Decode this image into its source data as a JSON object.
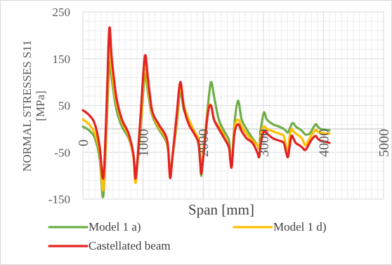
{
  "chart_data": {
    "type": "line",
    "title": "",
    "xlabel": "Span [mm]",
    "ylabel_lines": [
      "NORMAL STRESSES S11",
      "[MPa]"
    ],
    "xlim": [
      0,
      5000
    ],
    "ylim": [
      -150,
      250
    ],
    "xticks": [
      0,
      1000,
      2000,
      3000,
      4000,
      5000
    ],
    "xtick_labels": [
      "0",
      "1000",
      "2000",
      "3000",
      "4000",
      "5000"
    ],
    "yticks": [
      -150,
      -50,
      50,
      150,
      250
    ],
    "ytick_labels": [
      "-150",
      "-50",
      "50",
      "150",
      "250"
    ],
    "grid": true,
    "legend_position": "bottom",
    "series": [
      {
        "name": "Model 1 a)",
        "color": "#70AD47",
        "points": [
          [
            0,
            5
          ],
          [
            100,
            -3
          ],
          [
            200,
            -20
          ],
          [
            280,
            -65
          ],
          [
            330,
            -145
          ],
          [
            360,
            -100
          ],
          [
            400,
            20
          ],
          [
            440,
            140
          ],
          [
            480,
            105
          ],
          [
            560,
            40
          ],
          [
            650,
            5
          ],
          [
            760,
            -20
          ],
          [
            840,
            -55
          ],
          [
            870,
            -95
          ],
          [
            900,
            -80
          ],
          [
            960,
            0
          ],
          [
            1030,
            115
          ],
          [
            1080,
            80
          ],
          [
            1150,
            30
          ],
          [
            1260,
            0
          ],
          [
            1380,
            -25
          ],
          [
            1420,
            -50
          ],
          [
            1450,
            -95
          ],
          [
            1490,
            -60
          ],
          [
            1560,
            10
          ],
          [
            1620,
            80
          ],
          [
            1680,
            40
          ],
          [
            1760,
            20
          ],
          [
            1850,
            -5
          ],
          [
            1920,
            -25
          ],
          [
            1950,
            -60
          ],
          [
            1970,
            -100
          ],
          [
            2010,
            -40
          ],
          [
            2080,
            50
          ],
          [
            2130,
            100
          ],
          [
            2180,
            70
          ],
          [
            2260,
            20
          ],
          [
            2350,
            -5
          ],
          [
            2430,
            -25
          ],
          [
            2450,
            -60
          ],
          [
            2475,
            -80
          ],
          [
            2520,
            10
          ],
          [
            2580,
            60
          ],
          [
            2640,
            20
          ],
          [
            2720,
            0
          ],
          [
            2820,
            -20
          ],
          [
            2900,
            -35
          ],
          [
            2930,
            -40
          ],
          [
            2960,
            0
          ],
          [
            3010,
            35
          ],
          [
            3060,
            20
          ],
          [
            3160,
            10
          ],
          [
            3260,
            5
          ],
          [
            3340,
            0
          ],
          [
            3380,
            -5
          ],
          [
            3410,
            -8
          ],
          [
            3440,
            0
          ],
          [
            3470,
            10
          ],
          [
            3500,
            12
          ],
          [
            3540,
            5
          ],
          [
            3600,
            0
          ],
          [
            3650,
            -5
          ],
          [
            3700,
            -12
          ],
          [
            3770,
            -10
          ],
          [
            3820,
            0
          ],
          [
            3870,
            10
          ],
          [
            3900,
            6
          ],
          [
            3950,
            0
          ],
          [
            4050,
            -2
          ],
          [
            4100,
            -3
          ]
        ]
      },
      {
        "name": "Model 1 d)",
        "color": "#FFC000",
        "points": [
          [
            0,
            20
          ],
          [
            100,
            10
          ],
          [
            200,
            -10
          ],
          [
            280,
            -50
          ],
          [
            330,
            -130
          ],
          [
            360,
            -90
          ],
          [
            400,
            40
          ],
          [
            440,
            195
          ],
          [
            480,
            125
          ],
          [
            560,
            55
          ],
          [
            650,
            15
          ],
          [
            760,
            -15
          ],
          [
            840,
            -60
          ],
          [
            870,
            -115
          ],
          [
            900,
            -85
          ],
          [
            960,
            10
          ],
          [
            1030,
            140
          ],
          [
            1080,
            95
          ],
          [
            1150,
            35
          ],
          [
            1260,
            5
          ],
          [
            1380,
            -20
          ],
          [
            1420,
            -50
          ],
          [
            1450,
            -100
          ],
          [
            1490,
            -60
          ],
          [
            1560,
            20
          ],
          [
            1620,
            90
          ],
          [
            1680,
            50
          ],
          [
            1760,
            20
          ],
          [
            1850,
            -5
          ],
          [
            1920,
            -20
          ],
          [
            1950,
            -60
          ],
          [
            1970,
            -90
          ],
          [
            2010,
            -40
          ],
          [
            2080,
            40
          ],
          [
            2130,
            50
          ],
          [
            2180,
            20
          ],
          [
            2260,
            5
          ],
          [
            2350,
            -15
          ],
          [
            2430,
            -40
          ],
          [
            2450,
            -60
          ],
          [
            2475,
            -80
          ],
          [
            2520,
            0
          ],
          [
            2580,
            20
          ],
          [
            2640,
            5
          ],
          [
            2720,
            -10
          ],
          [
            2820,
            -25
          ],
          [
            2900,
            -35
          ],
          [
            2930,
            -40
          ],
          [
            2960,
            -10
          ],
          [
            3010,
            5
          ],
          [
            3060,
            0
          ],
          [
            3160,
            -5
          ],
          [
            3260,
            -10
          ],
          [
            3340,
            -15
          ],
          [
            3380,
            -40
          ],
          [
            3410,
            -45
          ],
          [
            3440,
            -15
          ],
          [
            3470,
            0
          ],
          [
            3500,
            -5
          ],
          [
            3540,
            -10
          ],
          [
            3600,
            -15
          ],
          [
            3650,
            -22
          ],
          [
            3700,
            -35
          ],
          [
            3770,
            -20
          ],
          [
            3820,
            -10
          ],
          [
            3870,
            -2
          ],
          [
            3900,
            -5
          ],
          [
            3950,
            -8
          ],
          [
            4050,
            -10
          ],
          [
            4100,
            -10
          ]
        ]
      },
      {
        "name": "Castellated beam",
        "color": "#E32222",
        "points": [
          [
            0,
            40
          ],
          [
            100,
            30
          ],
          [
            200,
            10
          ],
          [
            280,
            -40
          ],
          [
            330,
            -105
          ],
          [
            360,
            -70
          ],
          [
            400,
            70
          ],
          [
            440,
            215
          ],
          [
            480,
            150
          ],
          [
            560,
            65
          ],
          [
            650,
            20
          ],
          [
            760,
            -10
          ],
          [
            840,
            -55
          ],
          [
            870,
            -105
          ],
          [
            900,
            -80
          ],
          [
            960,
            30
          ],
          [
            1030,
            155
          ],
          [
            1080,
            110
          ],
          [
            1150,
            40
          ],
          [
            1260,
            10
          ],
          [
            1380,
            -15
          ],
          [
            1420,
            -45
          ],
          [
            1450,
            -105
          ],
          [
            1490,
            -60
          ],
          [
            1560,
            30
          ],
          [
            1620,
            100
          ],
          [
            1680,
            45
          ],
          [
            1760,
            10
          ],
          [
            1850,
            -10
          ],
          [
            1920,
            -30
          ],
          [
            1950,
            -70
          ],
          [
            1970,
            -95
          ],
          [
            2010,
            -50
          ],
          [
            2080,
            35
          ],
          [
            2130,
            50
          ],
          [
            2180,
            20
          ],
          [
            2260,
            0
          ],
          [
            2350,
            -20
          ],
          [
            2430,
            -40
          ],
          [
            2450,
            -65
          ],
          [
            2475,
            -80
          ],
          [
            2520,
            -10
          ],
          [
            2580,
            10
          ],
          [
            2640,
            -5
          ],
          [
            2720,
            -20
          ],
          [
            2820,
            -30
          ],
          [
            2900,
            -50
          ],
          [
            2930,
            -60
          ],
          [
            2960,
            -30
          ],
          [
            3010,
            -5
          ],
          [
            3060,
            -10
          ],
          [
            3160,
            -20
          ],
          [
            3260,
            -25
          ],
          [
            3340,
            -30
          ],
          [
            3380,
            -50
          ],
          [
            3410,
            -60
          ],
          [
            3440,
            -35
          ],
          [
            3470,
            -15
          ],
          [
            3500,
            -20
          ],
          [
            3540,
            -30
          ],
          [
            3600,
            -35
          ],
          [
            3650,
            -40
          ],
          [
            3700,
            -45
          ],
          [
            3770,
            -30
          ],
          [
            3820,
            -20
          ],
          [
            3870,
            -15
          ],
          [
            3900,
            -20
          ],
          [
            3950,
            -25
          ],
          [
            4050,
            -28
          ],
          [
            4100,
            -30
          ]
        ]
      }
    ]
  }
}
